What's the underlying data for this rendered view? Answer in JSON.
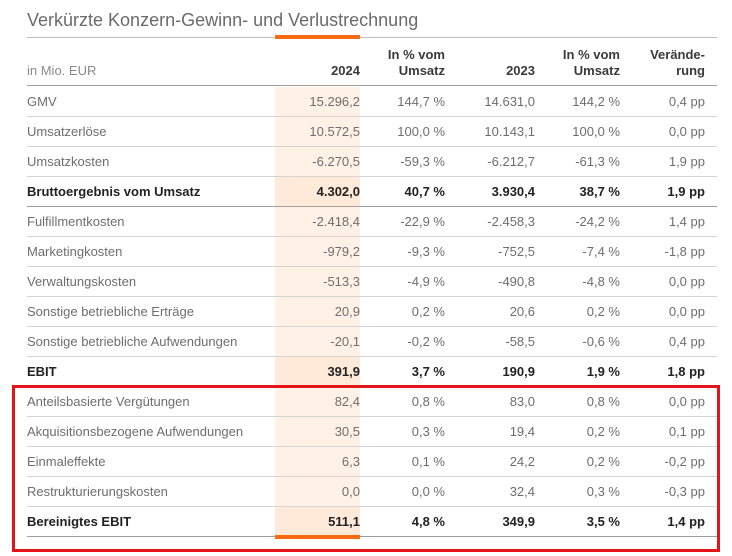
{
  "title": "Verkürzte Konzern-Gewinn- und Verlustrechnung",
  "colors": {
    "accent": "#ff6a10",
    "highlight_box": "#e3151a"
  },
  "header": {
    "label": "in Mio. EUR",
    "col_2024": "2024",
    "col_pct_2024": "In % vom Umsatz",
    "col_2023": "2023",
    "col_pct_2023": "In % vom Umsatz",
    "col_change": "Verände-rung"
  },
  "rows": [
    {
      "label": "GMV",
      "v2024": "15.296,2",
      "p2024": "144,7 %",
      "v2023": "14.631,0",
      "p2023": "144,2 %",
      "change": "0,4 pp",
      "bold": false
    },
    {
      "label": "Umsatzerlöse",
      "v2024": "10.572,5",
      "p2024": "100,0 %",
      "v2023": "10.143,1",
      "p2023": "100,0 %",
      "change": "0,0 pp",
      "bold": false
    },
    {
      "label": "Umsatzkosten",
      "v2024": "-6.270,5",
      "p2024": "-59,3 %",
      "v2023": "-6.212,7",
      "p2023": "-61,3 %",
      "change": "1,9 pp",
      "bold": false
    },
    {
      "label": "Bruttoergebnis vom Umsatz",
      "v2024": "4.302,0",
      "p2024": "40,7 %",
      "v2023": "3.930,4",
      "p2023": "38,7 %",
      "change": "1,9 pp",
      "bold": true
    },
    {
      "label": "Fulfillmentkosten",
      "v2024": "-2.418,4",
      "p2024": "-22,9 %",
      "v2023": "-2.458,3",
      "p2023": "-24,2 %",
      "change": "1,4 pp",
      "bold": false
    },
    {
      "label": "Marketingkosten",
      "v2024": "-979,2",
      "p2024": "-9,3 %",
      "v2023": "-752,5",
      "p2023": "-7,4 %",
      "change": "-1,8 pp",
      "bold": false
    },
    {
      "label": "Verwaltungskosten",
      "v2024": "-513,3",
      "p2024": "-4,9 %",
      "v2023": "-490,8",
      "p2023": "-4,8 %",
      "change": "0,0 pp",
      "bold": false
    },
    {
      "label": "Sonstige betriebliche Erträge",
      "v2024": "20,9",
      "p2024": "0,2 %",
      "v2023": "20,6",
      "p2023": "0,2 %",
      "change": "0,0 pp",
      "bold": false
    },
    {
      "label": "Sonstige betriebliche Aufwendungen",
      "v2024": "-20,1",
      "p2024": "-0,2 %",
      "v2023": "-58,5",
      "p2023": "-0,6 %",
      "change": "0,4 pp",
      "bold": false
    },
    {
      "label": "EBIT",
      "v2024": "391,9",
      "p2024": "3,7 %",
      "v2023": "190,9",
      "p2023": "1,9 %",
      "change": "1,8 pp",
      "bold": true
    },
    {
      "label": "Anteilsbasierte Vergütungen",
      "v2024": "82,4",
      "p2024": "0,8 %",
      "v2023": "83,0",
      "p2023": "0,8 %",
      "change": "0,0 pp",
      "bold": false
    },
    {
      "label": "Akquisitionsbezogene Aufwendungen",
      "v2024": "30,5",
      "p2024": "0,3 %",
      "v2023": "19,4",
      "p2023": "0,2 %",
      "change": "0,1 pp",
      "bold": false
    },
    {
      "label": "Einmaleffekte",
      "v2024": "6,3",
      "p2024": "0,1 %",
      "v2023": "24,2",
      "p2023": "0,2 %",
      "change": "-0,2 pp",
      "bold": false
    },
    {
      "label": "Restrukturierungskosten",
      "v2024": "0,0",
      "p2024": "0,0 %",
      "v2023": "32,4",
      "p2023": "0,3 %",
      "change": "-0,3 pp",
      "bold": false
    },
    {
      "label": "Bereinigtes EBIT",
      "v2024": "511,1",
      "p2024": "4,8 %",
      "v2023": "349,9",
      "p2023": "3,5 %",
      "change": "1,4 pp",
      "bold": true
    }
  ]
}
